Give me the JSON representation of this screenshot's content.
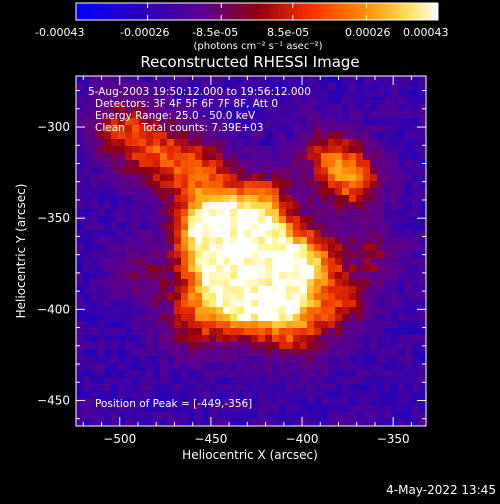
{
  "colorbar": {
    "tick_labels": [
      "-0.00043",
      "-0.00026",
      "-8.5e-05",
      "8.5e-05",
      "0.00026",
      "0.00043"
    ],
    "range": [
      -0.00043,
      0.00043
    ],
    "unit_label": "(photons cm⁻² s⁻¹ asec⁻²)",
    "colormap": [
      "#0000ff",
      "#4b0082",
      "#8b0000",
      "#ff4500",
      "#ffa500",
      "#ffff66",
      "#ffffff"
    ]
  },
  "chart_data": {
    "type": "heatmap",
    "title": "Reconstructed RHESSI Image",
    "xlabel": "Heliocentric X (arcsec)",
    "ylabel": "Heliocentric Y (arcsec)",
    "xlim": [
      -524,
      -332
    ],
    "ylim": [
      -464,
      -272
    ],
    "x_ticks": [
      -500,
      -450,
      -400,
      -350
    ],
    "y_ticks": [
      -300,
      -350,
      -400,
      -450
    ],
    "x_tick_labels": [
      "−500",
      "−450",
      "−400",
      "−350"
    ],
    "y_tick_labels": [
      "−300",
      "−350",
      "−400",
      "−450"
    ],
    "peak_position": [
      -449,
      -356
    ],
    "annotations": [
      "5-Aug-2003 19:50:12.000 to 19:56:12.000",
      "Detectors: 3F 4F 5F 6F 7F 8F, Att 0",
      "Energy Range: 25.0 - 50.0 keV",
      "Clean     Total counts: 7.39E+03"
    ],
    "peak_label": "Position of Peak = [-449,-356]"
  },
  "footer": {
    "timestamp": "4-May-2022 13:45"
  }
}
